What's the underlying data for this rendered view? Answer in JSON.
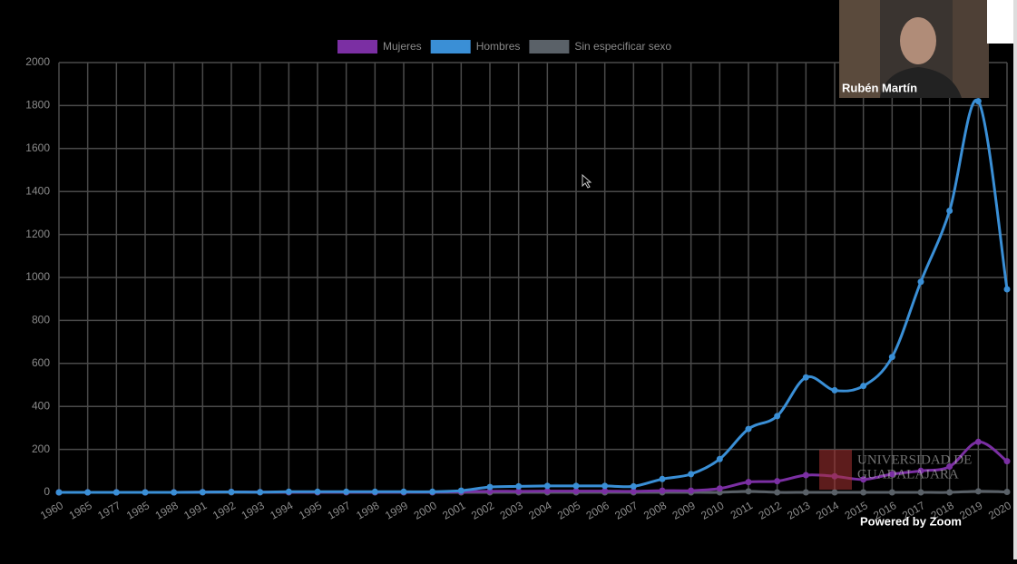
{
  "chart_data": {
    "type": "line",
    "categories": [
      "1960",
      "1965",
      "1977",
      "1985",
      "1988",
      "1991",
      "1992",
      "1993",
      "1994",
      "1995",
      "1997",
      "1998",
      "1999",
      "2000",
      "2001",
      "2002",
      "2003",
      "2004",
      "2005",
      "2006",
      "2007",
      "2008",
      "2009",
      "2010",
      "2011",
      "2012",
      "2013",
      "2014",
      "2015",
      "2016",
      "2017",
      "2018",
      "2019",
      "2020"
    ],
    "series": [
      {
        "name": "Mujeres",
        "color": "#7b2fa3",
        "values": [
          0,
          0,
          0,
          0,
          0,
          1,
          2,
          1,
          1,
          1,
          1,
          1,
          1,
          1,
          3,
          5,
          5,
          6,
          6,
          6,
          5,
          8,
          8,
          18,
          48,
          52,
          80,
          75,
          60,
          85,
          100,
          120,
          235,
          145
        ]
      },
      {
        "name": "Hombres",
        "color": "#3a8fd6",
        "values": [
          0,
          0,
          0,
          0,
          0,
          1,
          2,
          1,
          3,
          3,
          3,
          3,
          3,
          3,
          8,
          25,
          28,
          30,
          30,
          30,
          28,
          62,
          85,
          155,
          295,
          355,
          535,
          475,
          495,
          630,
          980,
          1310,
          1820,
          945
        ]
      },
      {
        "name": "Sin especificar sexo",
        "color": "#5a6168",
        "values": [
          0,
          0,
          0,
          0,
          0,
          0,
          0,
          0,
          0,
          0,
          0,
          0,
          0,
          0,
          0,
          0,
          0,
          0,
          0,
          0,
          0,
          0,
          0,
          0,
          5,
          0,
          0,
          0,
          0,
          0,
          0,
          0,
          5,
          2
        ]
      }
    ],
    "ylim": [
      0,
      2000
    ],
    "yticks": [
      0,
      200,
      400,
      600,
      800,
      1000,
      1200,
      1400,
      1600,
      1800,
      2000
    ],
    "grid": true
  },
  "overlay": {
    "participant_name": "Rubén Martín",
    "watermark": "Powered by Zoom",
    "logo_line_1": "UNIVERSIDAD DE",
    "logo_line_2": "GUADALAJARA"
  }
}
